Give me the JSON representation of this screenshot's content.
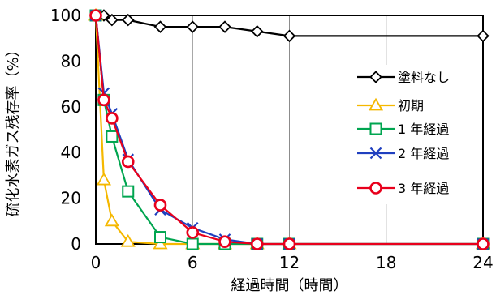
{
  "chart_data": {
    "type": "line",
    "xlabel": "経過時間（時間）",
    "ylabel": "硫化水素ガス残存率（%）",
    "xlim": [
      0,
      24
    ],
    "ylim": [
      0,
      100
    ],
    "x_ticks": [
      "0",
      "6",
      "12",
      "18",
      "24"
    ],
    "y_ticks": [
      "0",
      "20",
      "40",
      "60",
      "80",
      "100"
    ],
    "grid": "vertical",
    "legend_position": "right",
    "series": [
      {
        "name": "塗料なし",
        "color": "#000000",
        "marker": "diamond",
        "x": [
          0,
          0.5,
          1,
          2,
          4,
          6,
          8,
          10,
          12,
          24
        ],
        "y": [
          100,
          100,
          98,
          98,
          95,
          95,
          95,
          93,
          91,
          91
        ]
      },
      {
        "name": "初期",
        "color": "#F5B800",
        "marker": "triangle",
        "x": [
          0,
          0.5,
          1,
          2,
          4,
          6,
          8,
          10,
          12,
          24
        ],
        "y": [
          100,
          28,
          10,
          1,
          0,
          0,
          0,
          0,
          0,
          0
        ]
      },
      {
        "name": "1 年経過",
        "color": "#00A550",
        "marker": "square",
        "x": [
          0,
          0.5,
          1,
          2,
          4,
          6,
          8,
          10,
          12,
          24
        ],
        "y": [
          100,
          63,
          47,
          23,
          3,
          0,
          0,
          0,
          0,
          0
        ]
      },
      {
        "name": "2 年経過",
        "color": "#1F3FBF",
        "marker": "x",
        "x": [
          0,
          0.5,
          1,
          2,
          4,
          6,
          8,
          10,
          12,
          24
        ],
        "y": [
          100,
          66,
          57,
          37,
          15,
          7,
          2,
          0,
          0,
          0
        ]
      },
      {
        "name": "3 年経過",
        "color": "#E8001C",
        "marker": "circle",
        "x": [
          0,
          0.5,
          1,
          2,
          4,
          6,
          8,
          10,
          12,
          24
        ],
        "y": [
          100,
          63,
          55,
          36,
          17,
          5,
          1,
          0,
          0,
          0
        ]
      }
    ]
  }
}
